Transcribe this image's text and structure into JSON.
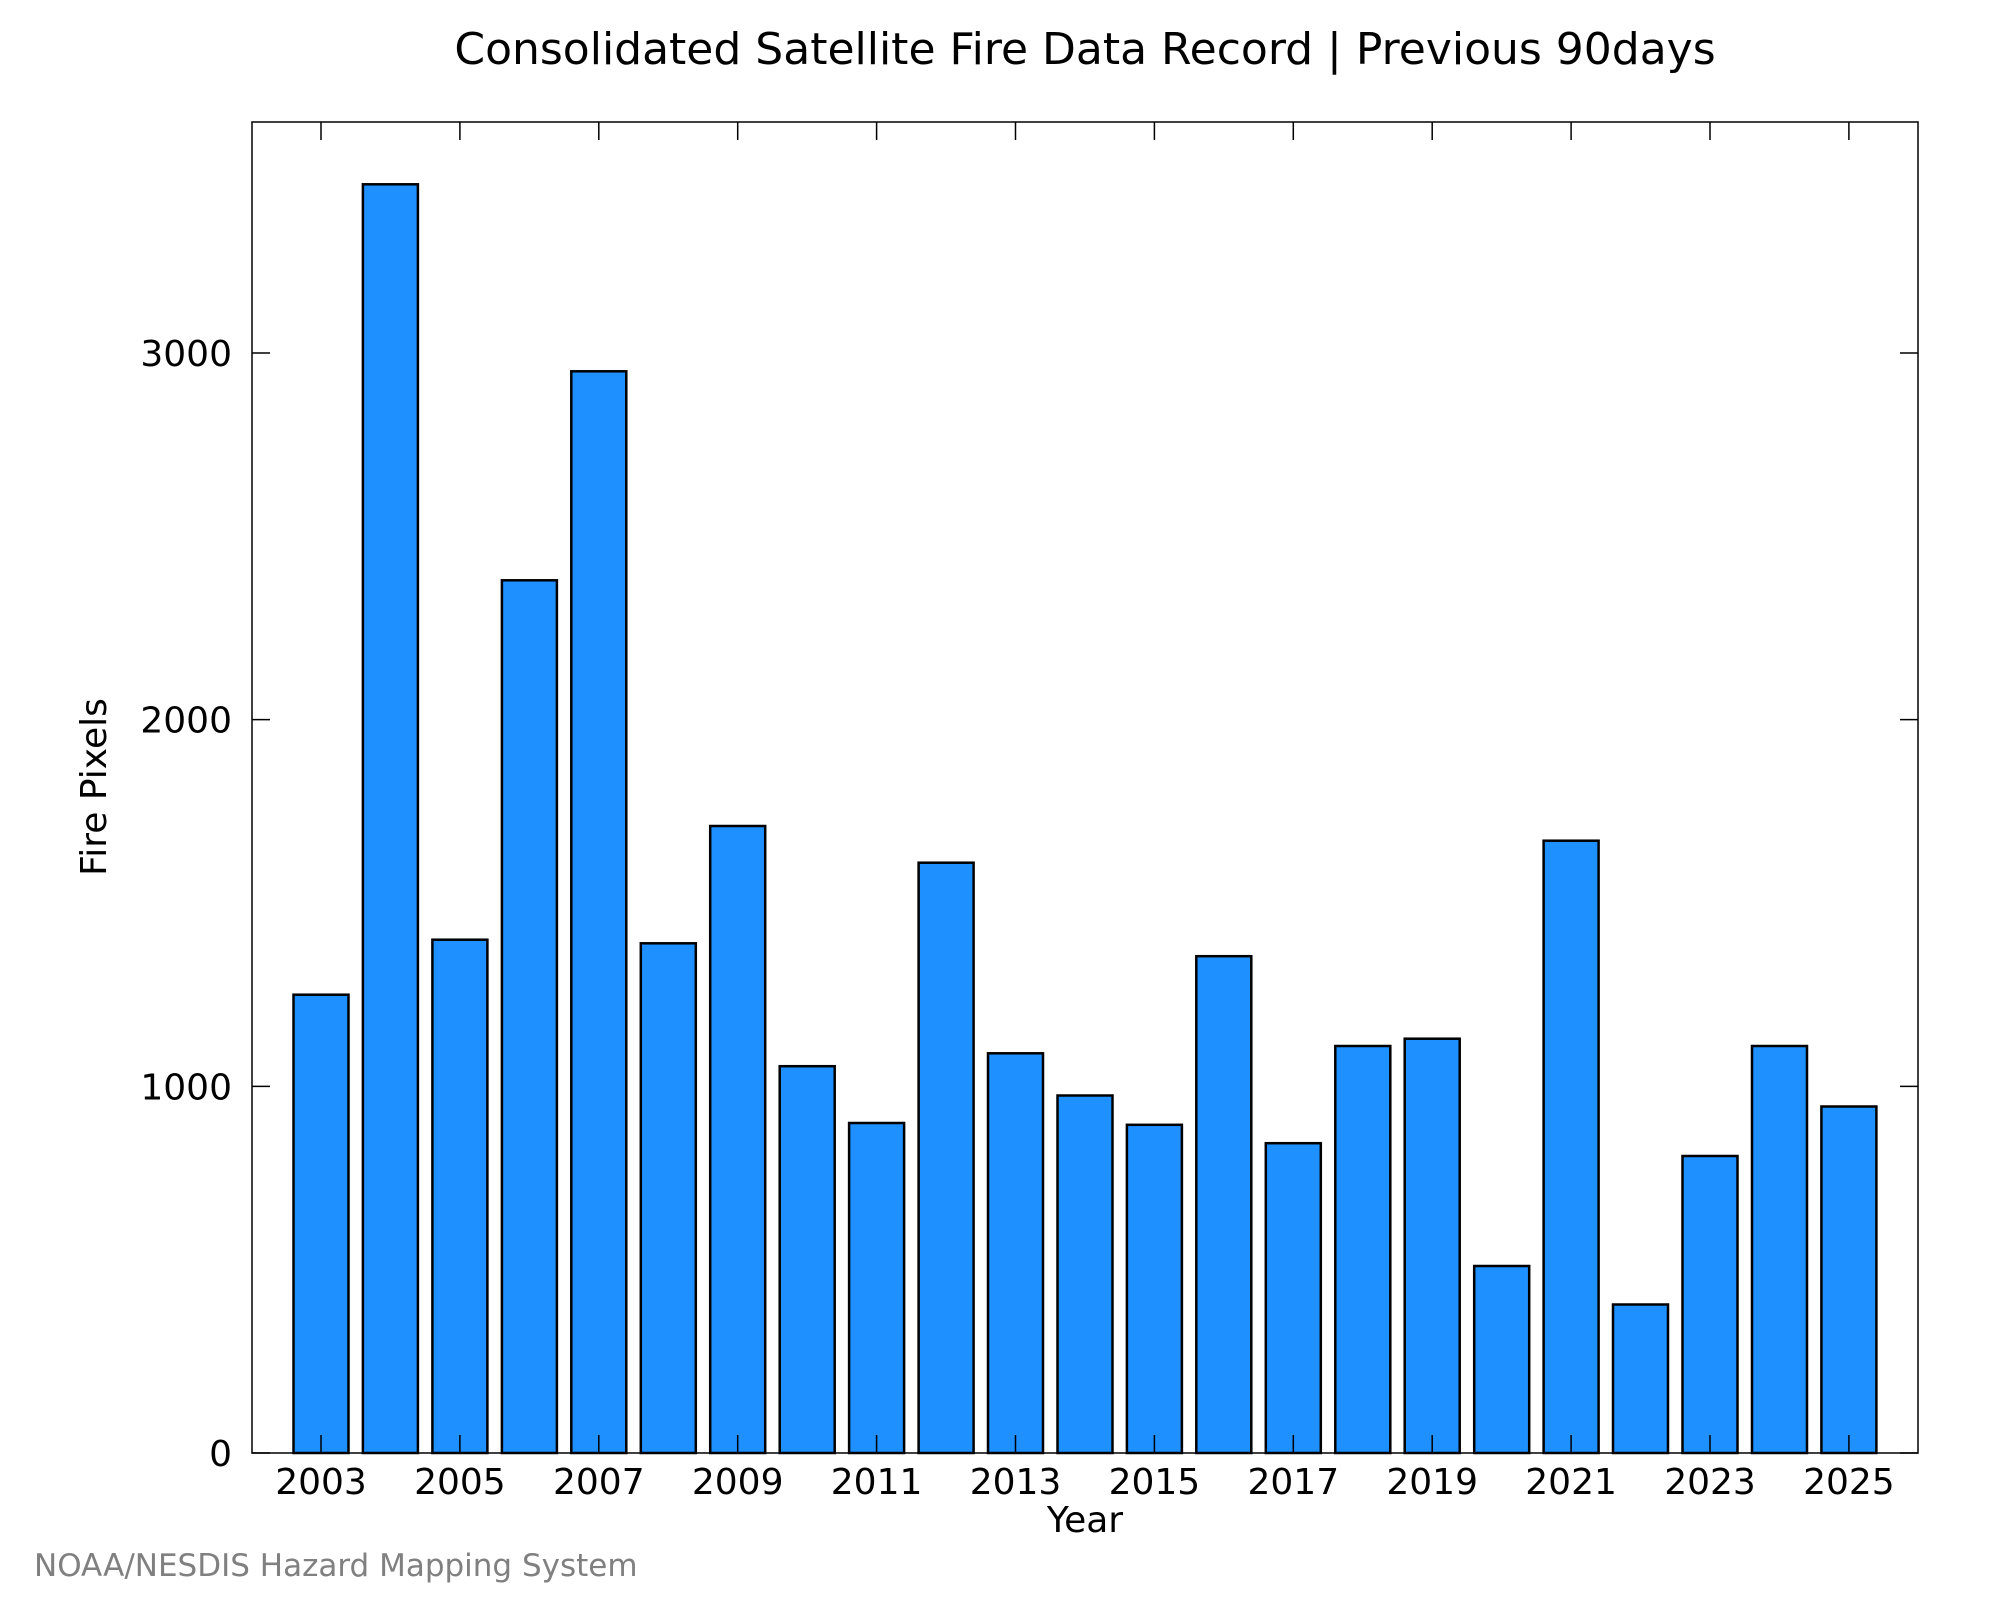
{
  "chart_data": {
    "type": "bar",
    "title": "Consolidated Satellite Fire Data Record | Previous 90days",
    "xlabel": "Year",
    "ylabel": "Fire Pixels",
    "ylim": [
      0,
      3630
    ],
    "yticks": [
      0,
      1000,
      2000,
      3000
    ],
    "xtick_labels": [
      "2003",
      "2005",
      "2007",
      "2009",
      "2011",
      "2013",
      "2015",
      "2017",
      "2019",
      "2021",
      "2023",
      "2025"
    ],
    "categories": [
      2003,
      2004,
      2005,
      2006,
      2007,
      2008,
      2009,
      2010,
      2011,
      2012,
      2013,
      2014,
      2015,
      2016,
      2017,
      2018,
      2019,
      2020,
      2021,
      2022,
      2023,
      2024,
      2025
    ],
    "values": [
      1250,
      3460,
      1400,
      2380,
      2950,
      1390,
      1710,
      1055,
      900,
      1610,
      1090,
      975,
      895,
      1355,
      845,
      1110,
      1130,
      510,
      1670,
      405,
      810,
      1110,
      945
    ],
    "bar_color": "#1e90ff",
    "grid": false
  },
  "footer": {
    "credit": "NOAA/NESDIS Hazard Mapping System"
  }
}
